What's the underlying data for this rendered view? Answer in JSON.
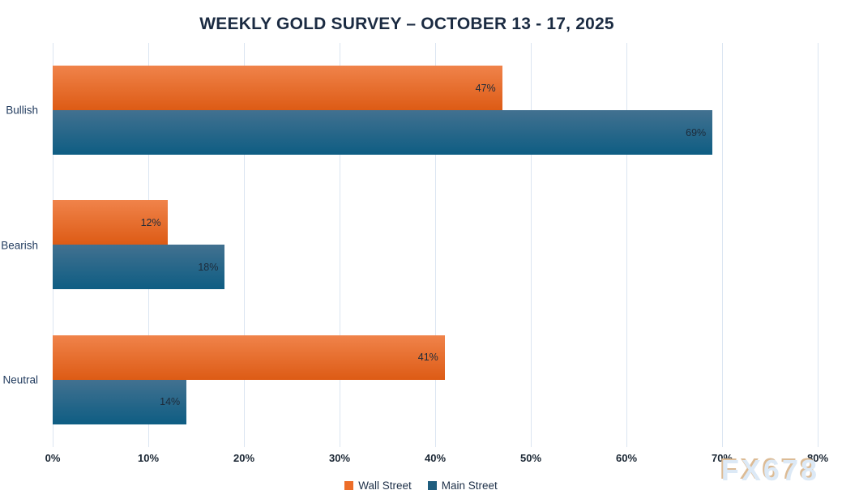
{
  "chart_data": {
    "type": "bar",
    "orientation": "horizontal",
    "title": "WEEKLY GOLD SURVEY – OCTOBER 13 - 17, 2025",
    "categories": [
      "Bullish",
      "Bearish",
      "Neutral"
    ],
    "series": [
      {
        "name": "Wall Street",
        "values": [
          47,
          12,
          41
        ],
        "labels": [
          "47%",
          "12%",
          "41%"
        ],
        "color": "#ed6d28",
        "gradient_top": "#f0834a",
        "gradient_bottom": "#dd5b15"
      },
      {
        "name": "Main Street",
        "values": [
          69,
          18,
          14
        ],
        "labels": [
          "69%",
          "18%",
          "14%"
        ],
        "color": "#1f5d7e",
        "gradient_top": "#427190",
        "gradient_bottom": "#0e5d83"
      }
    ],
    "xlim": [
      0,
      80
    ],
    "xticks": [
      0,
      10,
      20,
      30,
      40,
      50,
      60,
      70,
      80
    ],
    "xtick_labels": [
      "0%",
      "10%",
      "20%",
      "30%",
      "40%",
      "50%",
      "60%",
      "70%",
      "80%"
    ],
    "xlabel": "",
    "ylabel": "",
    "grid": "vertical-only",
    "legend_position": "bottom-center",
    "value_label_position": "inside-end",
    "label_color": "#1d2b3a",
    "gridline_color": "#dbe5f1"
  },
  "watermark": {
    "text": "FX678"
  }
}
